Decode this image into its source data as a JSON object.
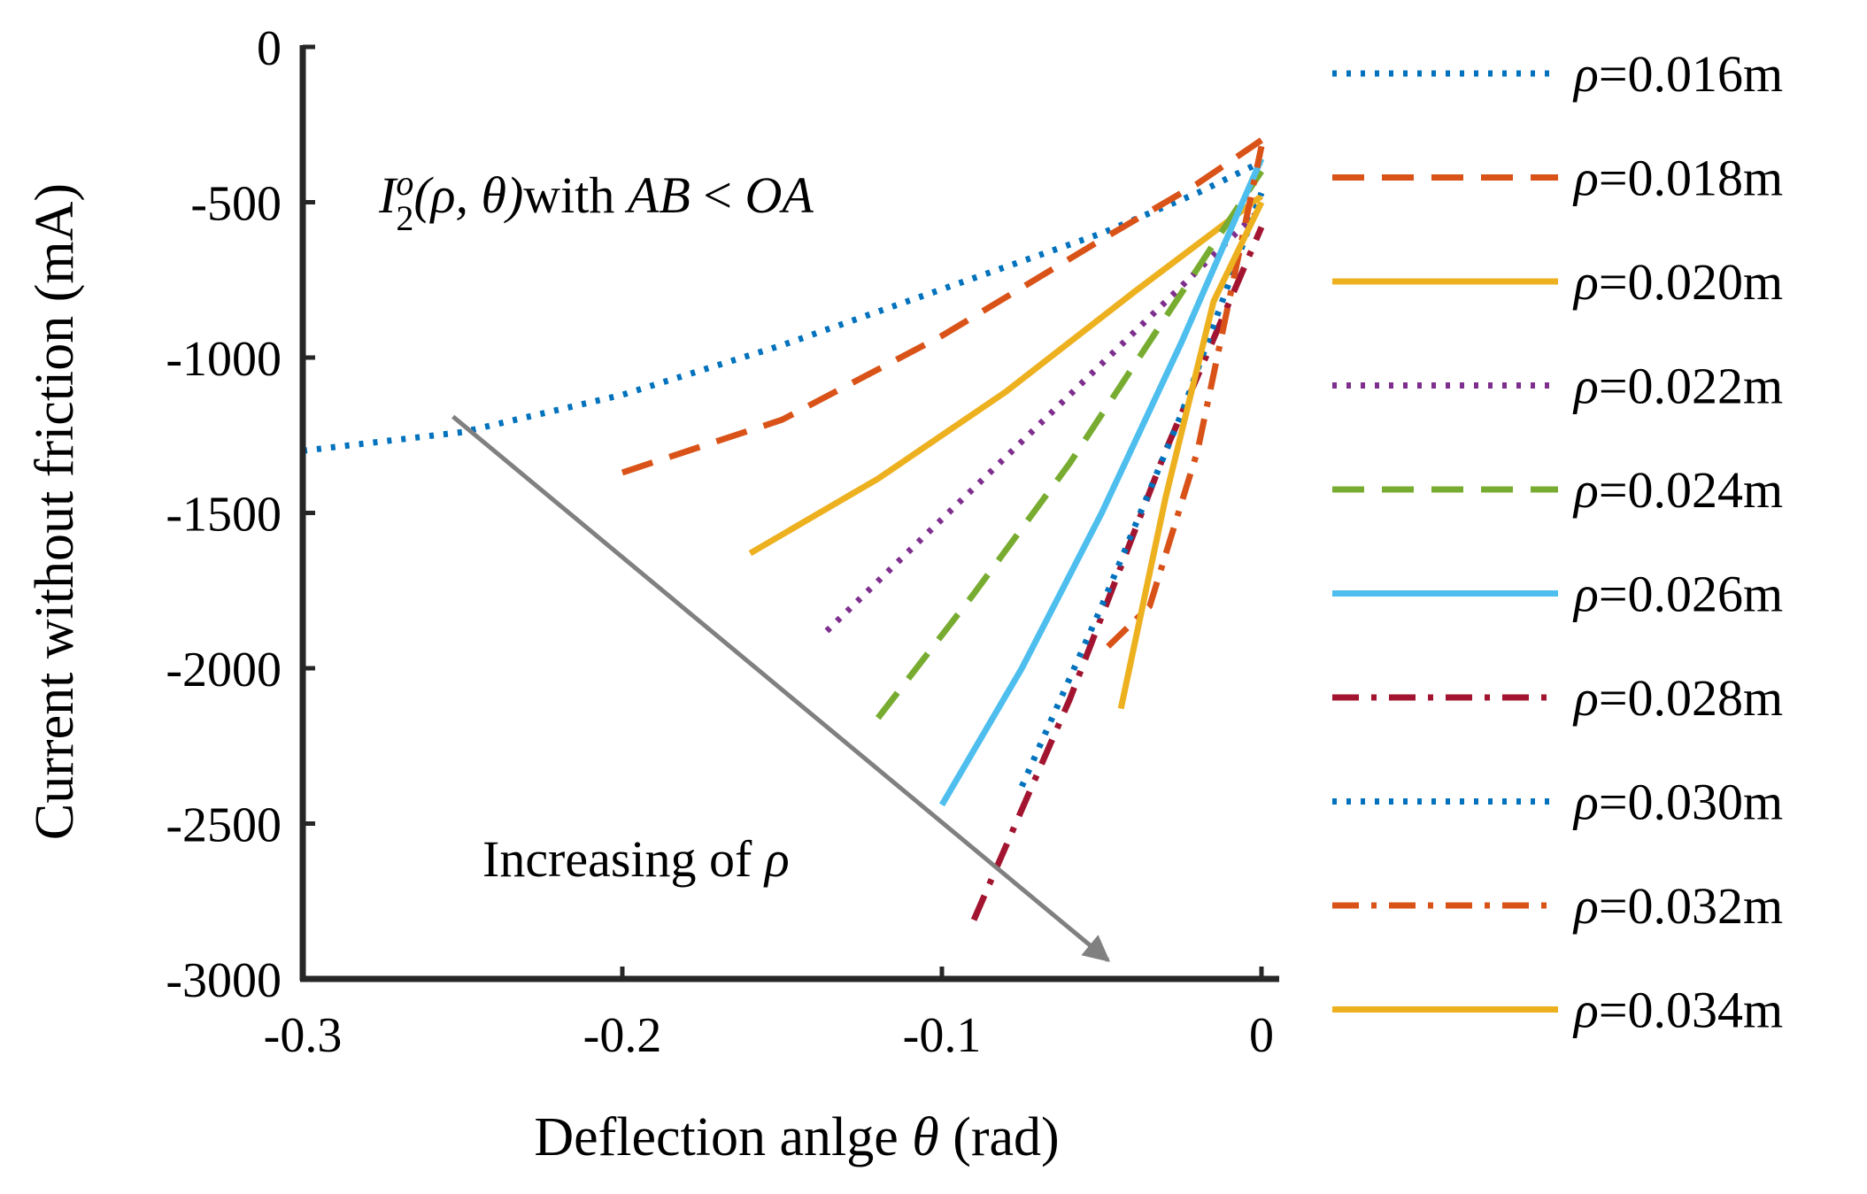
{
  "chart_data": {
    "type": "line",
    "title": "",
    "xlabel_prefix": "Deflection anlge ",
    "xlabel_symbol": "θ",
    "xlabel_suffix": " (rad)",
    "ylabel": "Current without friction (mA)",
    "xlim": [
      -0.3,
      0
    ],
    "ylim": [
      -3000,
      0
    ],
    "xticks": [
      -0.3,
      -0.2,
      -0.1,
      0
    ],
    "xtick_labels": [
      "-0.3",
      "-0.2",
      "-0.1",
      "0"
    ],
    "yticks": [
      0,
      -500,
      -1000,
      -1500,
      -2000,
      -2500,
      -3000
    ],
    "ytick_labels": [
      "0",
      "-500",
      "-1000",
      "-1500",
      "-2000",
      "-2500",
      "-3000"
    ],
    "grid": false,
    "legend_position": "right",
    "annotation_formula": {
      "I": "I",
      "sub": "2",
      "sup": "o",
      "args": "(ρ, θ)",
      "with": "with ",
      "cond_a": "AB",
      "lt": " < ",
      "cond_b": "OA"
    },
    "annotation_arrow": {
      "prefix": "Increasing of ",
      "symbol": "ρ",
      "from": [
        -0.253,
        -1190
      ],
      "to": [
        -0.048,
        -2940
      ]
    },
    "series": [
      {
        "name": "ρ=0.016m",
        "symbol": "ρ",
        "label_value": "=0.016m",
        "color": "#0072BD",
        "style": "dotted",
        "x": [
          -0.3,
          -0.25,
          -0.2,
          -0.15,
          -0.1,
          -0.05,
          -0.02,
          0
        ],
        "y": [
          -1300,
          -1240,
          -1120,
          -960,
          -780,
          -600,
          -470,
          -370
        ]
      },
      {
        "name": "ρ=0.018m",
        "symbol": "ρ",
        "label_value": "=0.018m",
        "color": "#D95319",
        "style": "dashed",
        "x": [
          -0.2,
          -0.15,
          -0.1,
          -0.05,
          -0.02,
          0
        ],
        "y": [
          -1370,
          -1200,
          -930,
          -620,
          -440,
          -300
        ]
      },
      {
        "name": "ρ=0.020m",
        "symbol": "ρ",
        "label_value": "=0.020m",
        "color": "#EDB120",
        "style": "solid",
        "x": [
          -0.16,
          -0.12,
          -0.08,
          -0.04,
          0
        ],
        "y": [
          -1630,
          -1390,
          -1110,
          -790,
          -480
        ]
      },
      {
        "name": "ρ=0.022m",
        "symbol": "ρ",
        "label_value": "=0.022m",
        "color": "#7E2F8E",
        "style": "dotted",
        "x": [
          -0.136,
          -0.1,
          -0.06,
          -0.03,
          0
        ],
        "y": [
          -1880,
          -1520,
          -1120,
          -820,
          -520
        ]
      },
      {
        "name": "ρ=0.024m",
        "symbol": "ρ",
        "label_value": "=0.024m",
        "color": "#77AC30",
        "style": "dashed",
        "x": [
          -0.12,
          -0.09,
          -0.06,
          -0.03,
          0
        ],
        "y": [
          -2160,
          -1760,
          -1340,
          -870,
          -400
        ]
      },
      {
        "name": "ρ=0.026m",
        "symbol": "ρ",
        "label_value": "=0.026m",
        "color": "#4DBEEE",
        "style": "solid",
        "x": [
          -0.1,
          -0.075,
          -0.05,
          -0.025,
          0
        ],
        "y": [
          -2440,
          -2000,
          -1500,
          -950,
          -360
        ]
      },
      {
        "name": "ρ=0.028m",
        "symbol": "ρ",
        "label_value": "=0.028m",
        "color": "#A2142F",
        "style": "dashdot",
        "x": [
          -0.09,
          -0.06,
          -0.03,
          0
        ],
        "y": [
          -2810,
          -2100,
          -1300,
          -580
        ]
      },
      {
        "name": "ρ=0.030m",
        "symbol": "ρ",
        "label_value": "=0.030m",
        "color": "#0072BD",
        "style": "dotted",
        "x": [
          -0.075,
          -0.05,
          -0.025,
          0
        ],
        "y": [
          -2380,
          -1800,
          -1180,
          -470
        ]
      },
      {
        "name": "ρ=0.032m",
        "symbol": "ρ",
        "label_value": "=0.032m",
        "color": "#D95319",
        "style": "dashdot",
        "x": [
          -0.048,
          -0.035,
          -0.02,
          0
        ],
        "y": [
          -1930,
          -1800,
          -1300,
          -320
        ]
      },
      {
        "name": "ρ=0.034m",
        "symbol": "ρ",
        "label_value": "=0.034m",
        "color": "#EDB120",
        "style": "solid",
        "x": [
          -0.044,
          -0.03,
          -0.015,
          0
        ],
        "y": [
          -2130,
          -1450,
          -820,
          -500
        ]
      }
    ]
  }
}
